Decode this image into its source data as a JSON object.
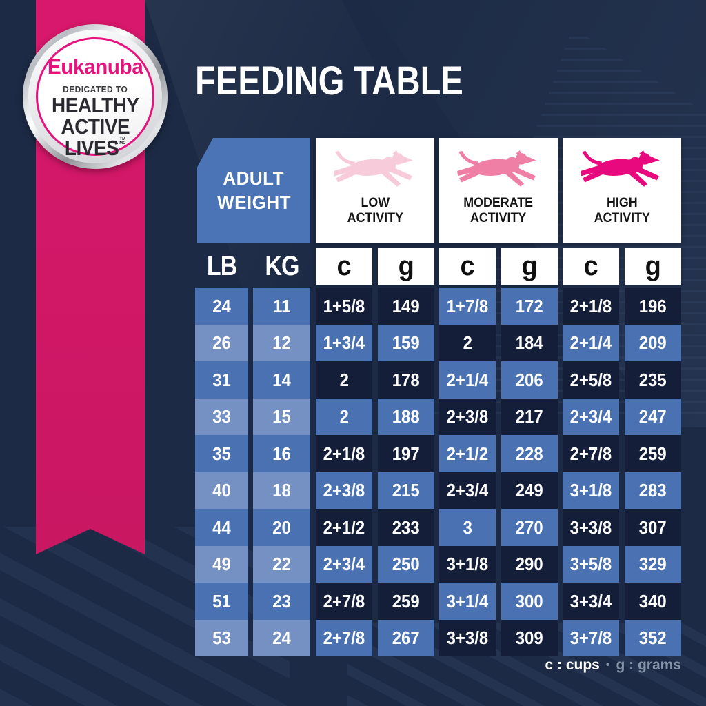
{
  "title": "FEEDING TABLE",
  "badge": {
    "brand": "Eukanuba",
    "dedicated": "DEDICATED TO",
    "line1": "HEALTHY",
    "line2": "ACTIVE",
    "line3": "LIVES",
    "tm1": "TM",
    "tm2": "MC"
  },
  "table": {
    "corner": {
      "line1": "ADULT",
      "line2": "WEIGHT"
    },
    "activity_groups": [
      {
        "line1": "LOW",
        "line2": "ACTIVITY",
        "dog_color": "#F8CBDB"
      },
      {
        "line1": "MODERATE",
        "line2": "ACTIVITY",
        "dog_color": "#EF7FA5"
      },
      {
        "line1": "HIGH",
        "line2": "ACTIVITY",
        "dog_color": "#E8097E"
      }
    ],
    "unit_headers": [
      "LB",
      "KG",
      "c",
      "g",
      "c",
      "g",
      "c",
      "g"
    ]
  },
  "chart_data": {
    "type": "table",
    "title": "FEEDING TABLE",
    "columns": [
      "LB",
      "KG",
      "LOW ACTIVITY c",
      "LOW ACTIVITY g",
      "MODERATE ACTIVITY c",
      "MODERATE ACTIVITY g",
      "HIGH ACTIVITY c",
      "HIGH ACTIVITY g"
    ],
    "rows": [
      [
        "24",
        "11",
        "1+5/8",
        "149",
        "1+7/8",
        "172",
        "2+1/8",
        "196"
      ],
      [
        "26",
        "12",
        "1+3/4",
        "159",
        "2",
        "184",
        "2+1/4",
        "209"
      ],
      [
        "31",
        "14",
        "2",
        "178",
        "2+1/4",
        "206",
        "2+5/8",
        "235"
      ],
      [
        "33",
        "15",
        "2",
        "188",
        "2+3/8",
        "217",
        "2+3/4",
        "247"
      ],
      [
        "35",
        "16",
        "2+1/8",
        "197",
        "2+1/2",
        "228",
        "2+7/8",
        "259"
      ],
      [
        "40",
        "18",
        "2+3/8",
        "215",
        "2+3/4",
        "249",
        "3+1/8",
        "283"
      ],
      [
        "44",
        "20",
        "2+1/2",
        "233",
        "3",
        "270",
        "3+3/8",
        "307"
      ],
      [
        "49",
        "22",
        "2+3/4",
        "250",
        "3+1/8",
        "290",
        "3+5/8",
        "329"
      ],
      [
        "51",
        "23",
        "2+7/8",
        "259",
        "3+1/4",
        "300",
        "3+3/4",
        "340"
      ],
      [
        "53",
        "24",
        "2+7/8",
        "267",
        "3+3/8",
        "309",
        "3+7/8",
        "352"
      ]
    ]
  },
  "legend": {
    "cups": "c : cups",
    "dot": "•",
    "grams": "g : grams"
  },
  "colors": {
    "background": "#1C2A45",
    "ribbon_pink": "#D8186C",
    "brand_pink": "#E5137D",
    "header_blue": "#4A74B6",
    "cell_medium_blue": "#4A72B2",
    "cell_light_blue": "#7590C3",
    "cell_dark_navy": "#141E39",
    "legend_gray": "#8593A8"
  }
}
